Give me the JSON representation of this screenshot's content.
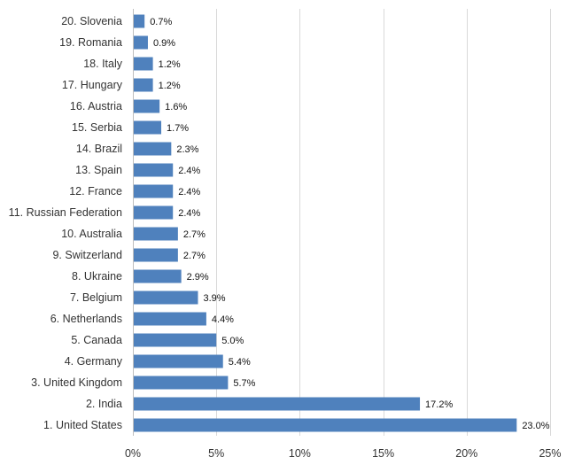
{
  "chart_data": {
    "type": "bar",
    "orientation": "horizontal",
    "categories": [
      "20. Slovenia",
      "19. Romania",
      "18. Italy",
      "17. Hungary",
      "16. Austria",
      "15. Serbia",
      "14. Brazil",
      "13. Spain",
      "12. France",
      "11. Russian Federation",
      "10. Australia",
      "9. Switzerland",
      "8. Ukraine",
      "7. Belgium",
      "6. Netherlands",
      "5. Canada",
      "4. Germany",
      "3. United Kingdom",
      "2. India",
      "1. United States"
    ],
    "values": [
      0.7,
      0.9,
      1.2,
      1.2,
      1.6,
      1.7,
      2.3,
      2.4,
      2.4,
      2.4,
      2.7,
      2.7,
      2.9,
      3.9,
      4.4,
      5.0,
      5.4,
      5.7,
      17.2,
      23.0
    ],
    "value_labels": [
      "0.7%",
      "0.9%",
      "1.2%",
      "1.2%",
      "1.6%",
      "1.7%",
      "2.3%",
      "2.4%",
      "2.4%",
      "2.4%",
      "2.7%",
      "2.7%",
      "2.9%",
      "3.9%",
      "4.4%",
      "5.0%",
      "5.4%",
      "5.7%",
      "17.2%",
      "23.0%"
    ],
    "xlim": [
      0,
      25
    ],
    "xticks": [
      0,
      5,
      10,
      15,
      20,
      25
    ],
    "xtick_labels": [
      "0%",
      "5%",
      "10%",
      "15%",
      "20%",
      "25%"
    ],
    "grid": "vertical",
    "bar_color": "#4f81bd",
    "title": "",
    "xlabel": "",
    "ylabel": ""
  }
}
